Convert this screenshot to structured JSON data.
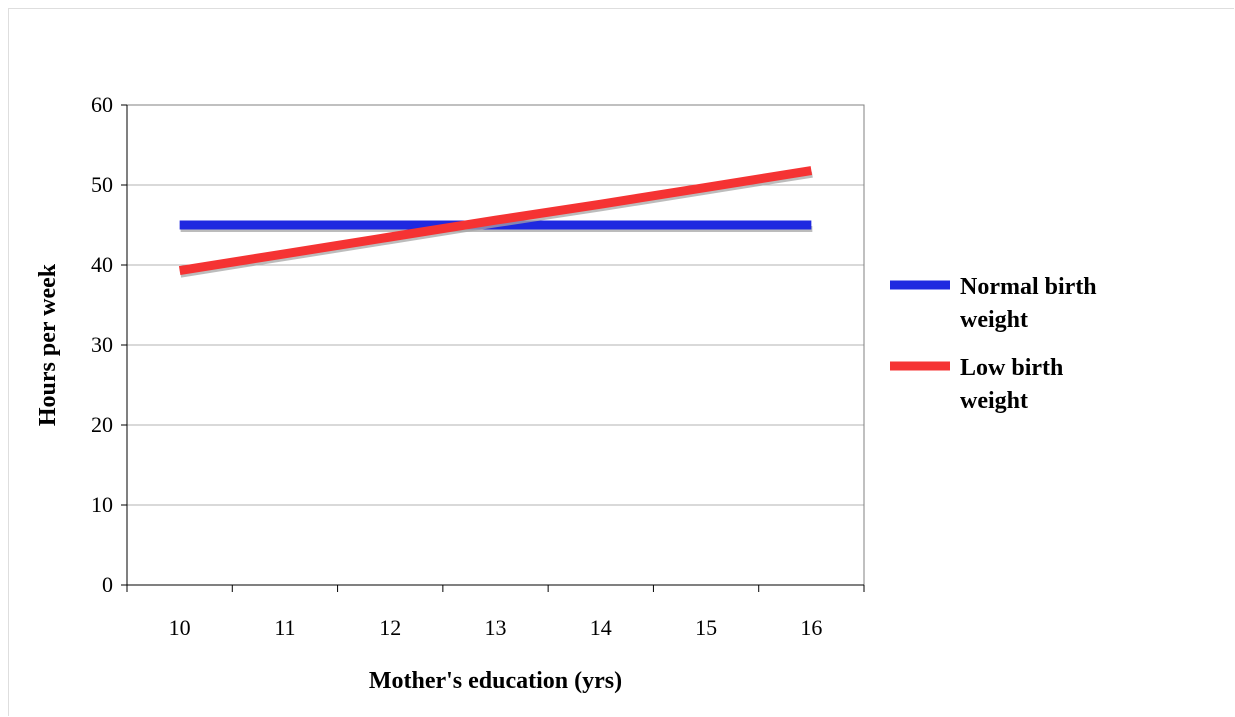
{
  "chart_data": {
    "type": "line",
    "title": "",
    "xlabel": "Mother's education (yrs)",
    "ylabel": "Hours per week",
    "x": [
      10,
      11,
      12,
      13,
      14,
      15,
      16
    ],
    "x_tick_labels": [
      "10",
      "11",
      "12",
      "13",
      "14",
      "15",
      "16"
    ],
    "ylim": [
      0,
      60
    ],
    "y_ticks": [
      0,
      10,
      20,
      30,
      40,
      50,
      60
    ],
    "y_tick_labels": [
      "0",
      "10",
      "20",
      "30",
      "40",
      "50",
      "60"
    ],
    "grid": "horizontal",
    "legend_position": "right",
    "series": [
      {
        "name": "Normal birth weight",
        "legend_lines": [
          "Normal birth",
          "weight"
        ],
        "color": "#1f29e0",
        "values": [
          45,
          45,
          45,
          45,
          45,
          45,
          45
        ]
      },
      {
        "name": "Low birth weight",
        "legend_lines": [
          "Low birth",
          "weight"
        ],
        "color": "#f53333",
        "values": [
          39.3,
          41.4,
          43.5,
          45.6,
          47.6,
          49.7,
          51.8
        ]
      }
    ]
  }
}
